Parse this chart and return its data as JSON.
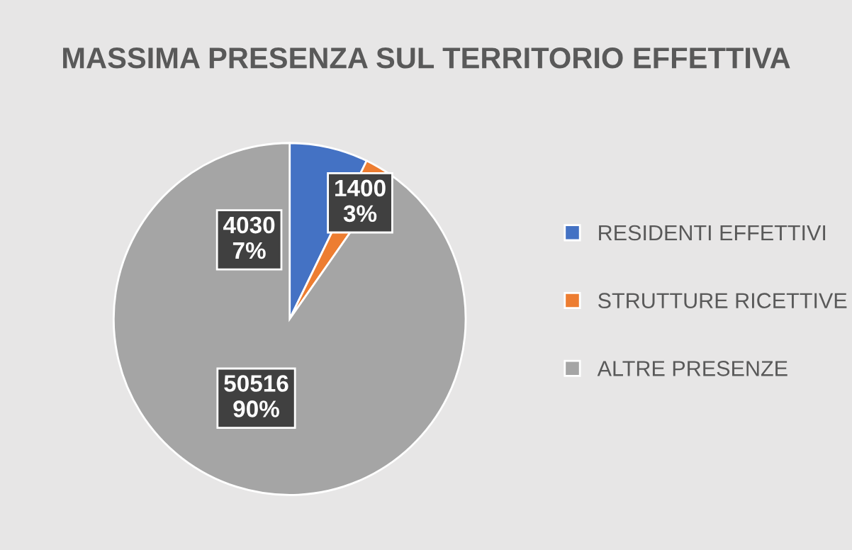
{
  "chart_data": {
    "type": "pie",
    "title": "MASSIMA PRESENZA SUL TERRITORIO EFFETTIVA",
    "categories": [
      "RESIDENTI EFFETTIVI",
      "STRUTTURE RICETTIVE",
      "ALTRE PRESENZE"
    ],
    "values": [
      4030,
      1400,
      50516
    ],
    "colors": [
      "#4472c4",
      "#ed7d31",
      "#a5a5a5"
    ],
    "value_labels": [
      "4030\n7%",
      "1400\n3%",
      "50516\n90%"
    ],
    "legend": "right"
  }
}
